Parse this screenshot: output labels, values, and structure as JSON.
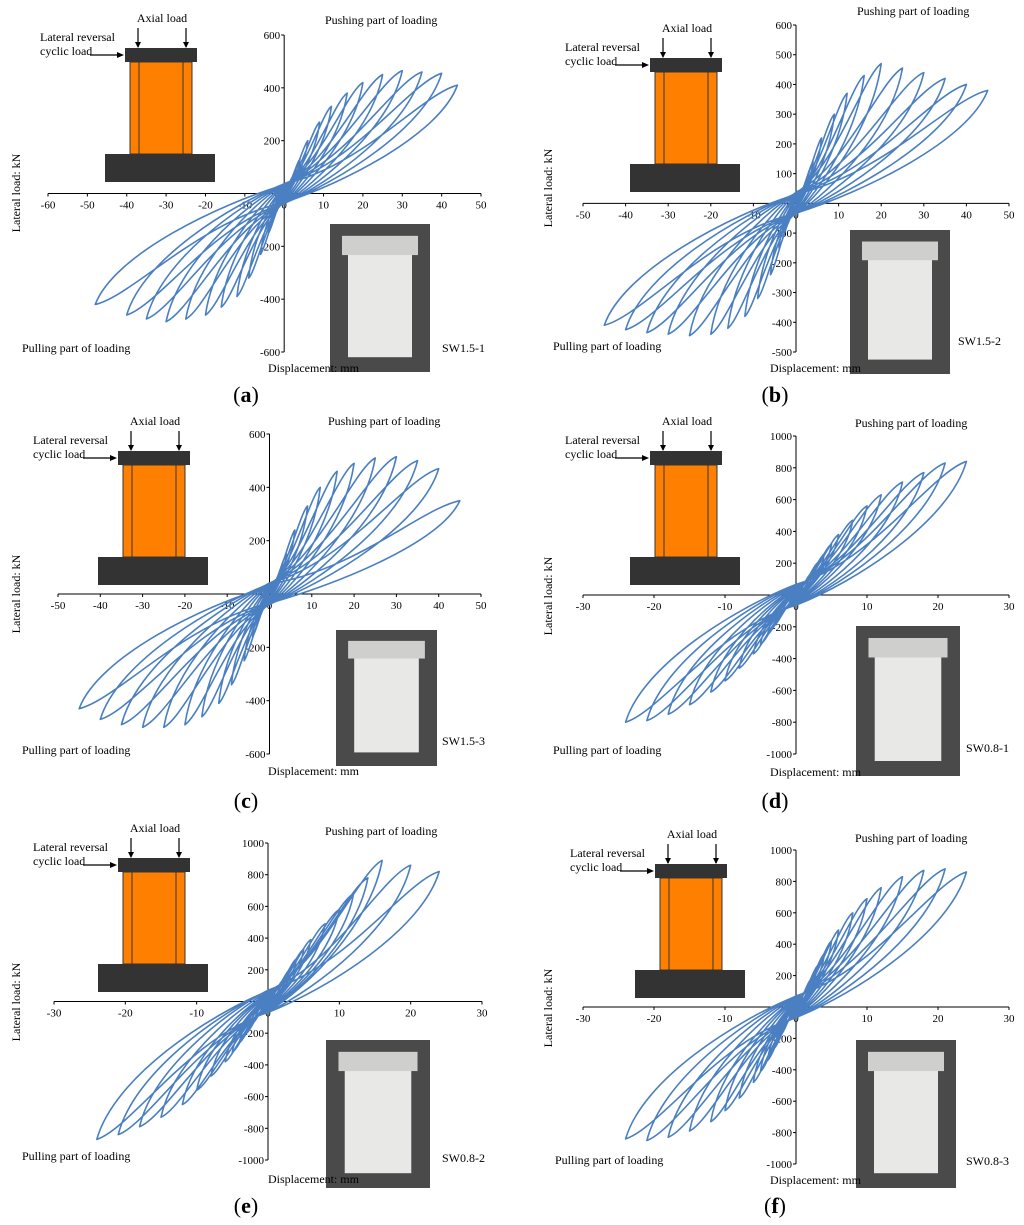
{
  "figure": {
    "annotations": {
      "axial": "Axial load",
      "lateral_line1": "Lateral reversal",
      "lateral_line2": "cyclic load",
      "pushing": "Pushing part of loading",
      "pulling": "Pulling part of loading"
    },
    "colors": {
      "curve": "#4a7fc1",
      "wall": "#ff8000",
      "beam": "#333333",
      "axis": "#000000"
    }
  },
  "chart_data": [
    {
      "type": "line",
      "panel_label": "(a)",
      "specimen": "SW1.5-1",
      "xlabel": "Displacement: mm",
      "ylabel": "Lateral load: kN",
      "xlim": [
        -60,
        50
      ],
      "ylim": [
        -600,
        600
      ],
      "xticks": [
        -60,
        -50,
        -40,
        -30,
        -20,
        -10,
        0,
        10,
        20,
        30,
        40,
        50
      ],
      "yticks": [
        -600,
        -400,
        -200,
        0,
        200,
        400,
        600
      ],
      "grid": false,
      "peak_pos": [
        [
          2,
          60
        ],
        [
          4,
          130
        ],
        [
          6,
          200
        ],
        [
          9,
          270
        ],
        [
          12,
          330
        ],
        [
          16,
          380
        ],
        [
          20,
          420
        ],
        [
          25,
          450
        ],
        [
          30,
          465
        ],
        [
          35,
          460
        ],
        [
          40,
          455
        ],
        [
          44,
          410
        ]
      ],
      "peak_neg": [
        [
          -2,
          -70
        ],
        [
          -4,
          -150
        ],
        [
          -6,
          -230
        ],
        [
          -9,
          -320
        ],
        [
          -12,
          -390
        ],
        [
          -16,
          -430
        ],
        [
          -20,
          -460
        ],
        [
          -25,
          -475
        ],
        [
          -30,
          -485
        ],
        [
          -35,
          -475
        ],
        [
          -40,
          -460
        ],
        [
          -48,
          -420
        ]
      ]
    },
    {
      "type": "line",
      "panel_label": "(b)",
      "specimen": "SW1.5-2",
      "xlabel": "Displacement: mm",
      "ylabel": "Lateral load: kN",
      "xlim": [
        -50,
        50
      ],
      "ylim": [
        -500,
        600
      ],
      "xticks": [
        -50,
        -40,
        -30,
        -20,
        -10,
        0,
        10,
        20,
        30,
        40,
        50
      ],
      "yticks": [
        -500,
        -400,
        -300,
        -200,
        -100,
        0,
        100,
        200,
        300,
        400,
        500,
        600
      ],
      "grid": false,
      "peak_pos": [
        [
          2,
          60
        ],
        [
          4,
          140
        ],
        [
          6,
          220
        ],
        [
          9,
          300
        ],
        [
          12,
          370
        ],
        [
          16,
          430
        ],
        [
          20,
          470
        ],
        [
          25,
          455
        ],
        [
          30,
          440
        ],
        [
          35,
          420
        ],
        [
          40,
          400
        ],
        [
          45,
          380
        ]
      ],
      "peak_neg": [
        [
          -2,
          -70
        ],
        [
          -4,
          -150
        ],
        [
          -6,
          -240
        ],
        [
          -9,
          -320
        ],
        [
          -12,
          -380
        ],
        [
          -16,
          -420
        ],
        [
          -20,
          -440
        ],
        [
          -25,
          -445
        ],
        [
          -30,
          -440
        ],
        [
          -35,
          -435
        ],
        [
          -40,
          -425
        ],
        [
          -45,
          -410
        ]
      ]
    },
    {
      "type": "line",
      "panel_label": "(c)",
      "specimen": "SW1.5-3",
      "xlabel": "Displacement: mm",
      "ylabel": "Lateral load: kN",
      "xlim": [
        -50,
        50
      ],
      "ylim": [
        -600,
        600
      ],
      "xticks": [
        -50,
        -40,
        -30,
        -20,
        -10,
        0,
        10,
        20,
        30,
        40,
        50
      ],
      "yticks": [
        -600,
        -400,
        -200,
        0,
        200,
        400,
        600
      ],
      "grid": false,
      "peak_pos": [
        [
          2,
          60
        ],
        [
          4,
          150
        ],
        [
          6,
          240
        ],
        [
          9,
          330
        ],
        [
          12,
          400
        ],
        [
          16,
          460
        ],
        [
          20,
          490
        ],
        [
          25,
          510
        ],
        [
          30,
          515
        ],
        [
          35,
          500
        ],
        [
          40,
          470
        ],
        [
          45,
          350
        ]
      ],
      "peak_neg": [
        [
          -2,
          -70
        ],
        [
          -4,
          -160
        ],
        [
          -6,
          -250
        ],
        [
          -9,
          -340
        ],
        [
          -12,
          -410
        ],
        [
          -16,
          -460
        ],
        [
          -20,
          -490
        ],
        [
          -25,
          -500
        ],
        [
          -30,
          -500
        ],
        [
          -35,
          -490
        ],
        [
          -40,
          -470
        ],
        [
          -45,
          -430
        ]
      ]
    },
    {
      "type": "line",
      "panel_label": "(d)",
      "specimen": "SW0.8-1",
      "xlabel": "Displacement: mm",
      "ylabel": "Lateral load: kN",
      "xlim": [
        -30,
        30
      ],
      "ylim": [
        -1000,
        1000
      ],
      "xticks": [
        -30,
        -20,
        -10,
        0,
        10,
        20,
        30
      ],
      "yticks": [
        -1000,
        -800,
        -600,
        -400,
        -200,
        0,
        200,
        400,
        600,
        800,
        1000
      ],
      "grid": false,
      "peak_pos": [
        [
          1,
          60
        ],
        [
          2,
          130
        ],
        [
          3,
          200
        ],
        [
          4,
          260
        ],
        [
          5,
          320
        ],
        [
          6,
          380
        ],
        [
          8,
          470
        ],
        [
          10,
          560
        ],
        [
          12,
          630
        ],
        [
          15,
          710
        ],
        [
          18,
          770
        ],
        [
          21,
          830
        ],
        [
          24,
          840
        ]
      ],
      "peak_neg": [
        [
          -1,
          -60
        ],
        [
          -2,
          -120
        ],
        [
          -3,
          -190
        ],
        [
          -4,
          -250
        ],
        [
          -5,
          -310
        ],
        [
          -6,
          -370
        ],
        [
          -8,
          -460
        ],
        [
          -10,
          -540
        ],
        [
          -12,
          -610
        ],
        [
          -15,
          -690
        ],
        [
          -18,
          -750
        ],
        [
          -21,
          -790
        ],
        [
          -24,
          -800
        ]
      ]
    },
    {
      "type": "line",
      "panel_label": "(e)",
      "specimen": "SW0.8-2",
      "xlabel": "Displacement: mm",
      "ylabel": "Lateral load: kN",
      "xlim": [
        -30,
        30
      ],
      "ylim": [
        -1000,
        1000
      ],
      "xticks": [
        -30,
        -20,
        -10,
        0,
        10,
        20,
        30
      ],
      "yticks": [
        -1000,
        -800,
        -600,
        -400,
        -200,
        0,
        200,
        400,
        600,
        800,
        1000
      ],
      "grid": false,
      "peak_pos": [
        [
          1,
          60
        ],
        [
          2,
          130
        ],
        [
          3,
          200
        ],
        [
          4,
          270
        ],
        [
          5,
          330
        ],
        [
          6,
          390
        ],
        [
          8,
          490
        ],
        [
          10,
          580
        ],
        [
          12,
          680
        ],
        [
          14,
          780
        ],
        [
          16,
          890
        ],
        [
          20,
          860
        ],
        [
          24,
          820
        ]
      ],
      "peak_neg": [
        [
          -1,
          -60
        ],
        [
          -2,
          -130
        ],
        [
          -3,
          -200
        ],
        [
          -4,
          -260
        ],
        [
          -5,
          -320
        ],
        [
          -6,
          -380
        ],
        [
          -8,
          -470
        ],
        [
          -10,
          -560
        ],
        [
          -12,
          -650
        ],
        [
          -15,
          -730
        ],
        [
          -18,
          -790
        ],
        [
          -21,
          -840
        ],
        [
          -24,
          -870
        ]
      ]
    },
    {
      "type": "line",
      "panel_label": "(f)",
      "specimen": "SW0.8-3",
      "xlabel": "Displacement: mm",
      "ylabel": "Lateral load: kN",
      "xlim": [
        -30,
        30
      ],
      "ylim": [
        -1000,
        1000
      ],
      "xticks": [
        -30,
        -20,
        -10,
        0,
        10,
        20,
        30
      ],
      "yticks": [
        -1000,
        -800,
        -600,
        -400,
        -200,
        0,
        200,
        400,
        600,
        800,
        1000
      ],
      "grid": false,
      "peak_pos": [
        [
          1,
          80
        ],
        [
          2,
          170
        ],
        [
          3,
          260
        ],
        [
          4,
          340
        ],
        [
          5,
          420
        ],
        [
          6,
          490
        ],
        [
          8,
          600
        ],
        [
          10,
          690
        ],
        [
          12,
          760
        ],
        [
          15,
          830
        ],
        [
          18,
          870
        ],
        [
          21,
          880
        ],
        [
          24,
          860
        ]
      ],
      "peak_neg": [
        [
          -1,
          -80
        ],
        [
          -2,
          -170
        ],
        [
          -3,
          -260
        ],
        [
          -4,
          -340
        ],
        [
          -5,
          -410
        ],
        [
          -6,
          -480
        ],
        [
          -8,
          -580
        ],
        [
          -10,
          -660
        ],
        [
          -12,
          -730
        ],
        [
          -15,
          -790
        ],
        [
          -18,
          -830
        ],
        [
          -21,
          -850
        ],
        [
          -24,
          -840
        ]
      ]
    }
  ]
}
